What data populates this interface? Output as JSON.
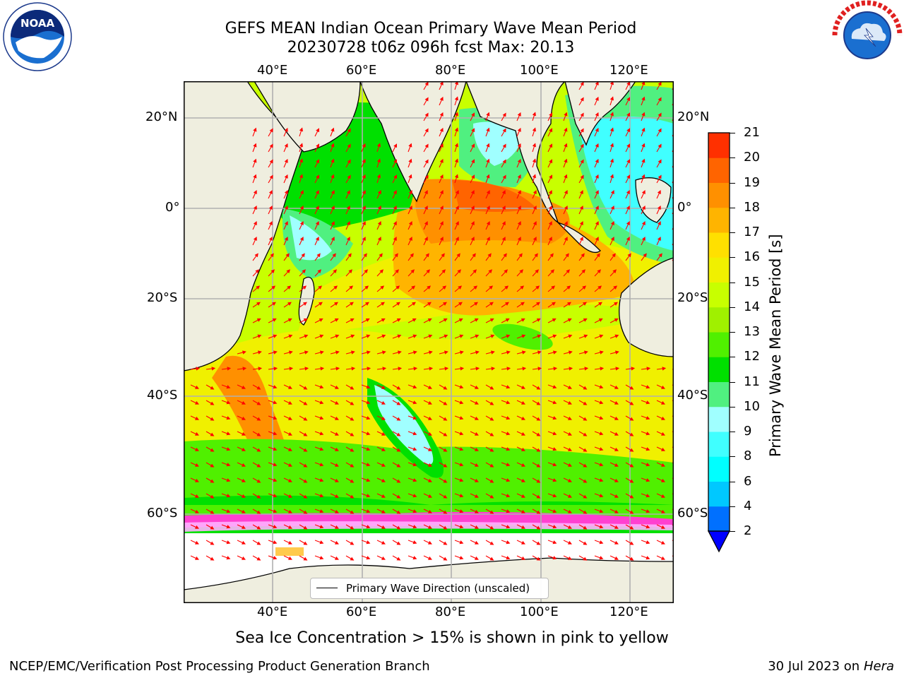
{
  "title": {
    "line1": "GEFS MEAN Indian Ocean Primary Wave Mean Period",
    "line2": "20230728 t06z 096h fcst   Max: 20.13"
  },
  "map": {
    "lon_ticks": [
      "40°E",
      "60°E",
      "80°E",
      "100°E",
      "120°E"
    ],
    "lat_ticks_left": [
      "20°N",
      "0°",
      "20°S",
      "40°S",
      "60°S"
    ],
    "lat_ticks_right": [
      "20°N",
      "0°",
      "20°S",
      "40°S",
      "60°S"
    ],
    "land_color": "#efeedf",
    "arrow_color": "#ff0000"
  },
  "legend": {
    "label": "Primary Wave Direction (unscaled)"
  },
  "colorbar": {
    "label": "Primary Wave Mean Period [s]",
    "ticks": [
      "2",
      "4",
      "6",
      "8",
      "9",
      "10",
      "11",
      "12",
      "13",
      "14",
      "15",
      "16",
      "17",
      "18",
      "19",
      "20",
      "21"
    ],
    "colors": [
      "#0070ff",
      "#00c8ff",
      "#00ffff",
      "#40ffff",
      "#a0ffff",
      "#50f080",
      "#00e000",
      "#50f000",
      "#a0f000",
      "#c8ff00",
      "#f0f000",
      "#ffe000",
      "#ffb400",
      "#ff9000",
      "#ff6400",
      "#ff3000",
      "#ff0000"
    ],
    "under_color": "#0000ff"
  },
  "subtitle": "Sea Ice Concentration > 15% is shown in pink to yellow",
  "footer": {
    "left": "NCEP/EMC/Verification Post Processing Product Generation Branch",
    "right_date": "30 Jul 2023 on ",
    "right_host": "Hera"
  },
  "logos": {
    "left_text": "NOAA",
    "right_text": "NATIONAL WEATHER SERVICE"
  }
}
